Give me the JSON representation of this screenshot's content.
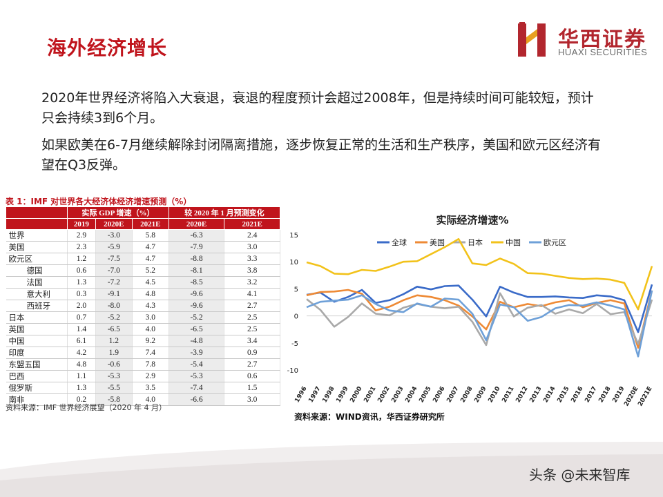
{
  "slide": {
    "title": "海外经济增长",
    "para1": "2020年世界经济将陷入大衰退，衰退的程度预计会超过2008年，但是持续时间可能较短，预计只会持续3到6个月。",
    "para2": "如果欧美在6-7月继续解除封闭隔离措施，逐步恢复正常的生活和生产秩序，美国和欧元区经济有望在Q3反弹。",
    "watermark": "头条 @未来智库"
  },
  "logo": {
    "cn": "华西证券",
    "en": "HUAXI SECURITIES",
    "brand_color": "#b2262e"
  },
  "table": {
    "caption": "表 1：IMF 对世界各大经济体经济增速预测（%）",
    "group_headers": [
      "实际 GDP 增速（%）",
      "较 2020 年 1 月预测变化"
    ],
    "col_headers": [
      "2019",
      "2020E",
      "2021E",
      "2020E",
      "2021E"
    ],
    "rows": [
      {
        "name": "世界",
        "v": [
          "2.9",
          "-3.0",
          "5.8",
          "-6.3",
          "2.4"
        ]
      },
      {
        "name": "美国",
        "v": [
          "2.3",
          "-5.9",
          "4.7",
          "-7.9",
          "3.0"
        ]
      },
      {
        "name": "欧元区",
        "v": [
          "1.2",
          "-7.5",
          "4.7",
          "-8.8",
          "3.3"
        ]
      },
      {
        "name": "德国",
        "v": [
          "0.6",
          "-7.0",
          "5.2",
          "-8.1",
          "3.8"
        ]
      },
      {
        "name": "法国",
        "v": [
          "1.3",
          "-7.2",
          "4.5",
          "-8.5",
          "3.2"
        ]
      },
      {
        "name": "意大利",
        "v": [
          "0.3",
          "-9.1",
          "4.8",
          "-9.6",
          "4.1"
        ]
      },
      {
        "name": "西班牙",
        "v": [
          "2.0",
          "-8.0",
          "4.3",
          "-9.6",
          "2.7"
        ]
      },
      {
        "name": "日本",
        "v": [
          "0.7",
          "-5.2",
          "3.0",
          "-5.2",
          "2.5"
        ]
      },
      {
        "name": "英国",
        "v": [
          "1.4",
          "-6.5",
          "4.0",
          "-6.5",
          "2.5"
        ]
      },
      {
        "name": "中国",
        "v": [
          "6.1",
          "1.2",
          "9.2",
          "-4.8",
          "3.4"
        ]
      },
      {
        "name": "印度",
        "v": [
          "4.2",
          "1.9",
          "7.4",
          "-3.9",
          "0.9"
        ]
      },
      {
        "name": "东盟五国",
        "v": [
          "4.8",
          "-0.6",
          "7.8",
          "-5.4",
          "2.7"
        ]
      },
      {
        "name": "巴西",
        "v": [
          "1.1",
          "-5.3",
          "2.9",
          "-5.3",
          "0.6"
        ]
      },
      {
        "name": "俄罗斯",
        "v": [
          "1.3",
          "-5.5",
          "3.5",
          "-7.4",
          "1.5"
        ]
      },
      {
        "name": "南非",
        "v": [
          "0.2",
          "-5.8",
          "4.0",
          "-6.6",
          "3.0"
        ]
      }
    ],
    "indented": [
      "德国",
      "法国",
      "意大利",
      "西班牙"
    ],
    "source": "资料来源：IMF 世界经济展望（2020 年 4 月）",
    "header_color": "#c0141c"
  },
  "chart_source": "资料来源：WIND资讯，华西证券研究所",
  "chart_data": {
    "type": "line",
    "title": "实际经济增速%",
    "categories": [
      "1996",
      "1997",
      "1998",
      "1999",
      "2000",
      "2001",
      "2002",
      "2003",
      "2004",
      "2005",
      "2006",
      "2007",
      "2008",
      "2009",
      "2010",
      "2011",
      "2012",
      "2013",
      "2014",
      "2015",
      "2016",
      "2017",
      "2018",
      "2019",
      "2020E",
      "2021E"
    ],
    "ylim": [
      -10,
      15
    ],
    "yticks": [
      -10,
      -5,
      0,
      5,
      10,
      15
    ],
    "legend_position": "top",
    "grid": false,
    "series": [
      {
        "name": "全球",
        "color": "#3a6bc8",
        "values": [
          3.9,
          4.3,
          2.6,
          3.5,
          4.8,
          2.4,
          2.9,
          4.0,
          5.4,
          4.9,
          5.5,
          5.6,
          3.0,
          -0.1,
          5.4,
          4.3,
          3.5,
          3.5,
          3.6,
          3.4,
          3.3,
          3.8,
          3.6,
          2.9,
          -3.0,
          5.8
        ]
      },
      {
        "name": "美国",
        "color": "#ee8a35",
        "values": [
          3.8,
          4.4,
          4.5,
          4.8,
          4.1,
          1.0,
          1.7,
          2.9,
          3.8,
          3.5,
          2.9,
          1.9,
          -0.1,
          -2.5,
          2.6,
          1.6,
          2.2,
          1.8,
          2.5,
          2.9,
          1.6,
          2.4,
          2.9,
          2.3,
          -5.9,
          4.7
        ]
      },
      {
        "name": "日本",
        "color": "#a9a9a9",
        "values": [
          3.1,
          1.1,
          -2.0,
          -0.2,
          2.3,
          0.4,
          0.1,
          1.5,
          2.2,
          1.7,
          1.4,
          1.7,
          -1.1,
          -5.4,
          4.2,
          -0.1,
          1.5,
          2.0,
          0.4,
          1.2,
          0.5,
          2.2,
          0.3,
          0.7,
          -5.2,
          3.0
        ]
      },
      {
        "name": "中国",
        "color": "#f2c21a",
        "values": [
          9.9,
          9.2,
          7.8,
          7.7,
          8.5,
          8.3,
          9.1,
          10.0,
          10.1,
          11.4,
          12.7,
          14.2,
          9.7,
          9.4,
          10.6,
          9.6,
          7.9,
          7.8,
          7.4,
          7.0,
          6.8,
          6.9,
          6.7,
          6.1,
          1.2,
          9.2
        ]
      },
      {
        "name": "欧元区",
        "color": "#6ea0d8",
        "values": [
          1.6,
          2.6,
          2.8,
          3.0,
          3.8,
          2.2,
          1.0,
          0.7,
          2.3,
          1.7,
          3.2,
          3.0,
          0.4,
          -4.5,
          2.1,
          1.6,
          -0.9,
          -0.2,
          1.4,
          2.0,
          1.9,
          2.5,
          1.9,
          1.2,
          -7.5,
          4.7
        ]
      }
    ]
  }
}
